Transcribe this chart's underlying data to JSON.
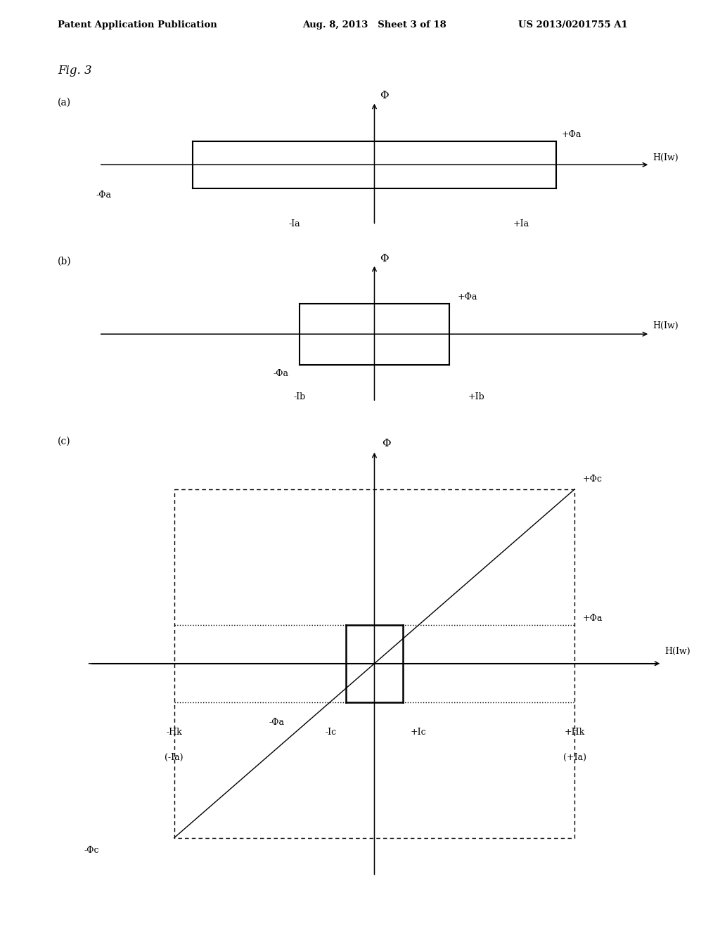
{
  "bg_color": "#ffffff",
  "header_left": "Patent Application Publication",
  "header_mid": "Aug. 8, 2013   Sheet 3 of 18",
  "header_right": "US 2013/0201755 A1",
  "fig_label": "Fig. 3",
  "panel_labels": [
    "(a)",
    "(b)",
    "(c)"
  ],
  "panel_a": {
    "phi_label": "Φ",
    "x_label": "H(Iᴡ)",
    "plus_phi_a": "+Φa",
    "minus_phi_a": "-Φa",
    "minus_ia": "-Ia",
    "plus_ia": "+Ia"
  },
  "panel_b": {
    "phi_label": "Φ",
    "x_label": "H(Iᴡ)",
    "plus_phi_a": "+Φa",
    "minus_phi_a": "-Φa",
    "minus_ib": "-Ib",
    "plus_ib": "+Ib"
  },
  "panel_c": {
    "phi_label": "Φ",
    "x_label": "H(Iᴡ)",
    "plus_phi_c": "+Φc",
    "minus_phi_c": "-Φc",
    "plus_phi_a": "+Φa",
    "minus_phi_a": "-Φa",
    "minus_hk": "-Hk",
    "plus_hk": "+Hk",
    "minus_ia_label": "(-Ia)",
    "plus_ia_label": "(+Ia)",
    "minus_ic": "-Ic",
    "plus_ic": "+Ic"
  }
}
